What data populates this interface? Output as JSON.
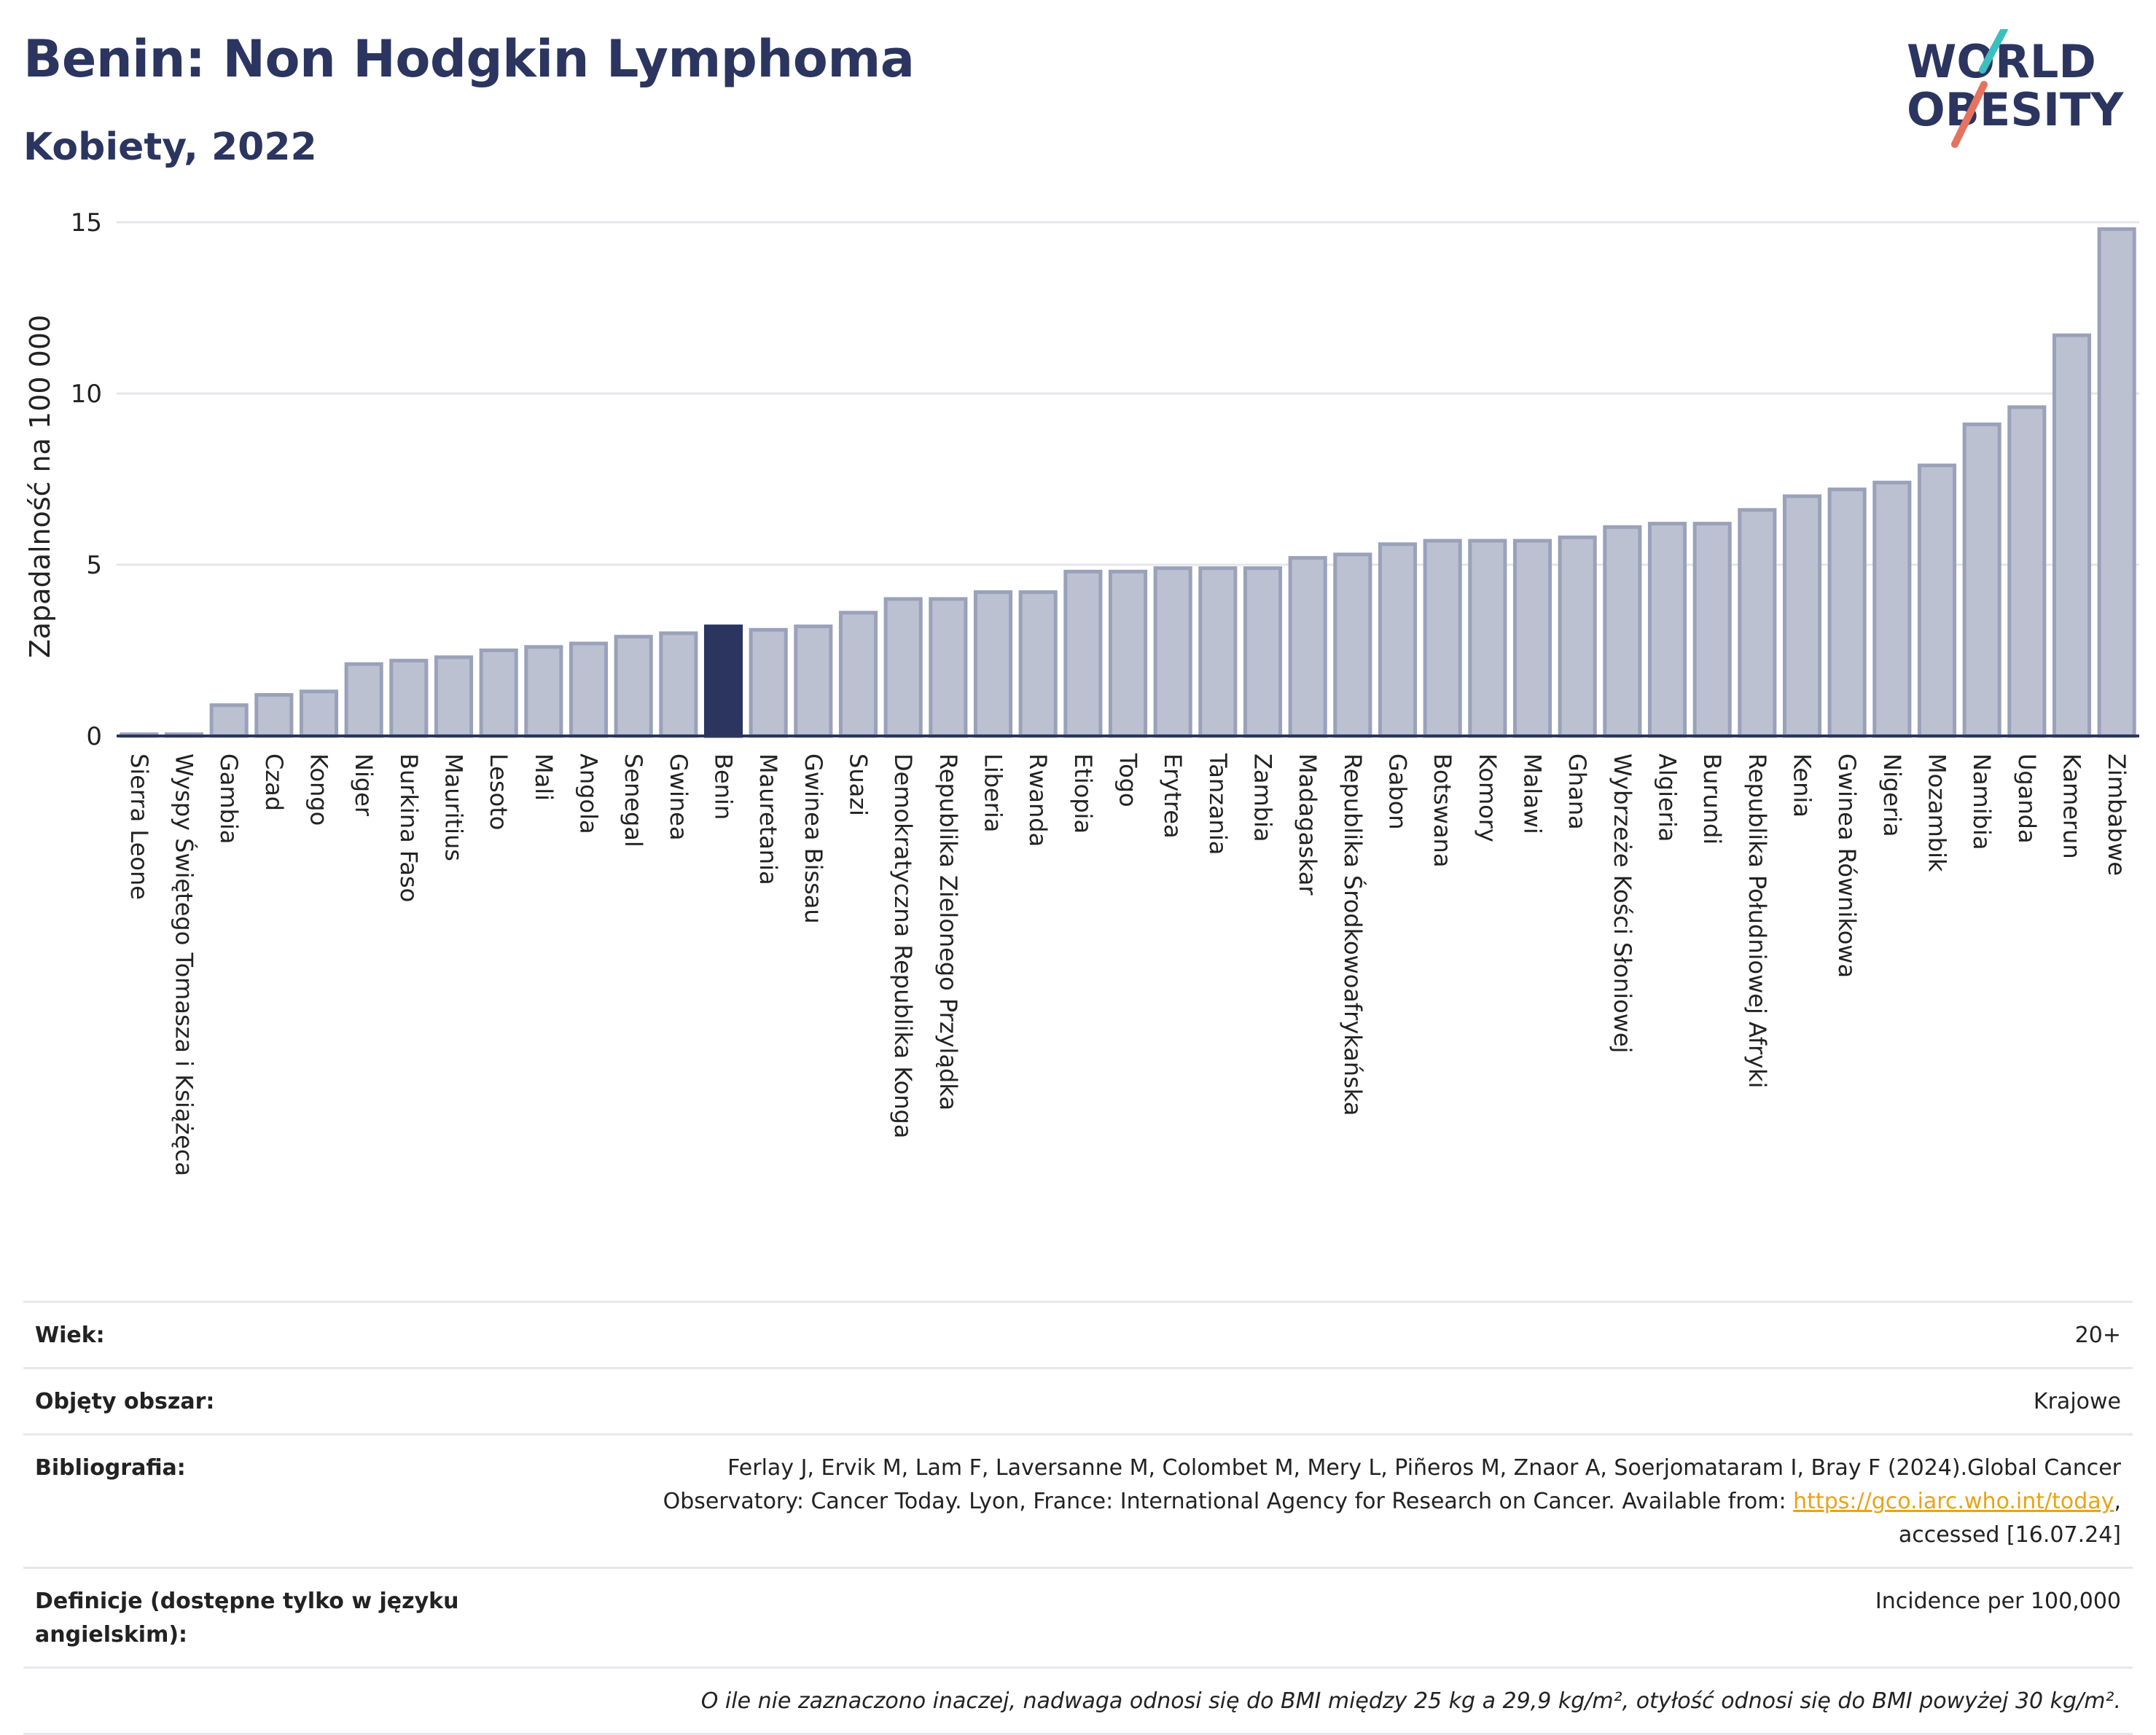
{
  "header": {
    "title": "Benin: Non Hodgkin Lymphoma",
    "subtitle": "Kobiety, 2022"
  },
  "logo": {
    "line1": "WORLD",
    "line2": "OBESITY",
    "colors": {
      "text": "#2b3560",
      "slash_teal": "#3bbfbf",
      "slash_coral": "#e5735f"
    }
  },
  "colors": {
    "bar": "#bcc1d1",
    "bar_border": "#9aa1ba",
    "highlight": "#2b3560",
    "grid": "#e4e6ec",
    "axis": "#2b3560"
  },
  "chart_data": {
    "type": "bar",
    "ylabel": "Zapadalność na 100 000",
    "ylim": [
      0,
      15
    ],
    "yticks": [
      0,
      5,
      10,
      15
    ],
    "highlight": "Benin",
    "grid": true,
    "categories": [
      "Sierra Leone",
      "Wyspy Świętego Tomasza i Książęca",
      "Gambia",
      "Czad",
      "Kongo",
      "Niger",
      "Burkina Faso",
      "Mauritius",
      "Lesoto",
      "Mali",
      "Angola",
      "Senegal",
      "Gwinea",
      "Benin",
      "Mauretania",
      "Gwinea Bissau",
      "Suazi",
      "Demokratyczna Republika Konga",
      "Republika Zielonego Przylądka",
      "Liberia",
      "Rwanda",
      "Etiopia",
      "Togo",
      "Erytrea",
      "Tanzania",
      "Zambia",
      "Madagaskar",
      "Republika Środkowoafrykańska",
      "Gabon",
      "Botswana",
      "Komory",
      "Malawi",
      "Ghana",
      "Wybrzeże Kości Słoniowej",
      "Algieria",
      "Burundi",
      "Republika Południowej Afryki",
      "Kenia",
      "Gwinea Równikowa",
      "Nigeria",
      "Mozambik",
      "Namibia",
      "Uganda",
      "Kamerun",
      "Zimbabwe"
    ],
    "values": [
      0.05,
      0.05,
      0.9,
      1.2,
      1.3,
      2.1,
      2.2,
      2.3,
      2.5,
      2.6,
      2.7,
      2.9,
      3.0,
      3.2,
      3.1,
      3.2,
      3.6,
      4.0,
      4.0,
      4.2,
      4.2,
      4.8,
      4.8,
      4.9,
      4.9,
      4.9,
      5.2,
      5.3,
      5.6,
      5.7,
      5.7,
      5.7,
      5.8,
      6.1,
      6.2,
      6.2,
      6.6,
      7.0,
      7.2,
      7.4,
      7.9,
      9.1,
      9.6,
      11.7,
      14.8
    ]
  },
  "meta": {
    "age_label": "Wiek:",
    "age_value": "20+",
    "coverage_label": "Objęty obszar:",
    "coverage_value": "Krajowe",
    "bib_label": "Bibliografia:",
    "bib_text1": "Ferlay J, Ervik M, Lam F, Laversanne M, Colombet M, Mery L, Piñeros M, Znaor A, Soerjomataram I, Bray F (2024).Global Cancer",
    "bib_text2": "Observatory: Cancer Today. Lyon, France: International Agency for Research on Cancer. Available from: ",
    "bib_link": "https://gco.iarc.who.int/today",
    "bib_text3": ",",
    "bib_text4": "accessed [16.07.24]",
    "def_label": "Definicje (dostępne tylko w języku angielskim):",
    "def_value": "Incidence per 100,000",
    "note": "O ile nie zaznaczono inaczej, nadwaga odnosi się do BMI między 25 kg a 29,9 kg/m², otyłość odnosi się do BMI powyżej 30 kg/m²."
  }
}
